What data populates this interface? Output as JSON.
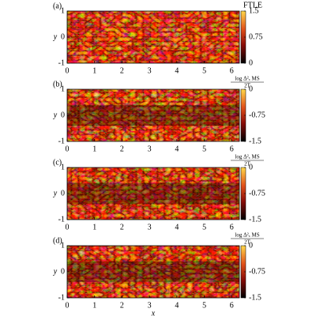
{
  "chart_data": [
    {
      "type": "heatmap",
      "panel_label": "(a)",
      "xlim": [
        0,
        6.28
      ],
      "xticks": [
        0,
        1,
        2,
        3,
        4,
        5,
        6
      ],
      "ylim": [
        -1,
        1
      ],
      "yticks": [
        -1,
        0,
        1
      ],
      "ylabel": "y",
      "colorbar": {
        "label": "FTLE",
        "clim": [
          0,
          1.5
        ],
        "ticks": [
          0,
          0.75,
          1.5
        ]
      }
    },
    {
      "type": "heatmap",
      "panel_label": "(b)",
      "xlim": [
        0,
        6.28
      ],
      "xticks": [
        0,
        1,
        2,
        3,
        4,
        5,
        6
      ],
      "ylim": [
        -1,
        1
      ],
      "yticks": [
        -1,
        0,
        1
      ],
      "ylabel": "y",
      "colorbar": {
        "label_numerator": "log Δ²ₓ MS",
        "label_denominator": "2T",
        "clim": [
          -1.5,
          0
        ],
        "ticks": [
          -1.5,
          -0.75,
          0
        ]
      }
    },
    {
      "type": "heatmap",
      "panel_label": "(c)",
      "xlim": [
        0,
        6.28
      ],
      "xticks": [
        0,
        1,
        2,
        3,
        4,
        5,
        6
      ],
      "ylim": [
        -1,
        1
      ],
      "yticks": [
        -1,
        0,
        1
      ],
      "ylabel": "y",
      "colorbar": {
        "label_numerator": "log Δ²ₓ MS",
        "label_denominator": "2T",
        "clim": [
          -1.5,
          0
        ],
        "ticks": [
          -1.5,
          -0.75,
          0
        ]
      }
    },
    {
      "type": "heatmap",
      "panel_label": "(d)",
      "xlim": [
        0,
        6.28
      ],
      "xticks": [
        0,
        1,
        2,
        3,
        4,
        5,
        6
      ],
      "ylim": [
        -1,
        1
      ],
      "yticks": [
        -1,
        0,
        1
      ],
      "ylabel": "y",
      "xlabel": "x",
      "colorbar": {
        "label_numerator": "log Δ²ₓ MS",
        "label_denominator": "2T",
        "clim": [
          -1.5,
          0
        ],
        "ticks": [
          -1.5,
          -0.75,
          0
        ]
      }
    }
  ]
}
